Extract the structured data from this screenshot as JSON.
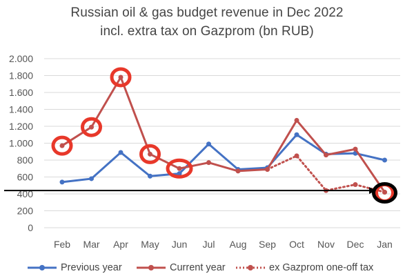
{
  "chart_data": {
    "type": "line",
    "title": "Russian oil & gas budget revenue in Dec 2022",
    "subtitle": "incl. extra tax on Gazprom (bn RUB)",
    "xlabel": "",
    "ylabel": "",
    "categories": [
      "Feb",
      "Mar",
      "Apr",
      "May",
      "Jun",
      "Jul",
      "Aug",
      "Sep",
      "Oct",
      "Nov",
      "Dec",
      "Jan"
    ],
    "ylim": [
      0,
      2000
    ],
    "yticks": [
      0,
      200,
      400,
      600,
      800,
      1000,
      1200,
      1400,
      1600,
      1800,
      2000
    ],
    "ytick_labels": [
      "0",
      "200",
      "400",
      "600",
      "800",
      "1.000",
      "1.200",
      "1.400",
      "1.600",
      "1.800",
      "2.000"
    ],
    "grid": true,
    "legend_position": "bottom",
    "series": [
      {
        "name": "Previous year",
        "color": "#4472c4",
        "style": "solid",
        "values": [
          540,
          580,
          890,
          610,
          640,
          990,
          690,
          710,
          1100,
          870,
          880,
          800
        ]
      },
      {
        "name": "Current year",
        "color": "#c0504d",
        "style": "solid",
        "values": [
          970,
          1190,
          1780,
          870,
          700,
          770,
          670,
          690,
          1270,
          860,
          930,
          420
        ]
      },
      {
        "name": "ex Gazprom one-off tax",
        "color": "#c0504d",
        "style": "dotted",
        "start_index": 7,
        "values": [
          null,
          null,
          null,
          null,
          null,
          null,
          null,
          690,
          850,
          440,
          510,
          420
        ]
      }
    ],
    "annotations": {
      "circled_points": {
        "series": "Current year",
        "indices": [
          0,
          1,
          2,
          3,
          4,
          11
        ],
        "color": "#e8382a"
      },
      "highlight_point": {
        "series": "Current year",
        "index": 11,
        "color": "#000000"
      },
      "reference_arrow": {
        "value": 440,
        "color": "#000000",
        "direction": "right"
      }
    }
  }
}
